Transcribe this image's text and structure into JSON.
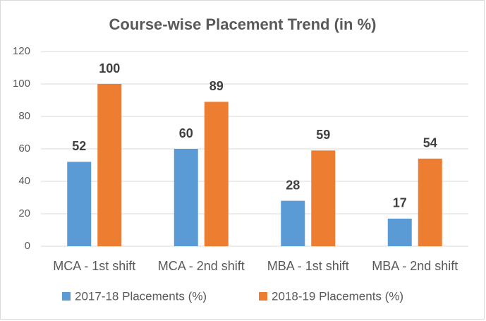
{
  "chart_data": {
    "type": "bar",
    "title": "Course-wise Placement Trend (in %)",
    "categories": [
      "MCA - 1st shift",
      "MCA - 2nd shift",
      "MBA - 1st shift",
      "MBA - 2nd shift"
    ],
    "series": [
      {
        "name": "2017-18 Placements (%)",
        "color": "#5b9bd5",
        "values": [
          52,
          60,
          28,
          17
        ]
      },
      {
        "name": "2018-19 Placements (%)",
        "color": "#ed7d31",
        "values": [
          100,
          89,
          59,
          54
        ]
      }
    ],
    "ylim": [
      0,
      120
    ],
    "yticks": [
      0,
      20,
      40,
      60,
      80,
      100,
      120
    ],
    "grid": true,
    "legend": "bottom"
  }
}
